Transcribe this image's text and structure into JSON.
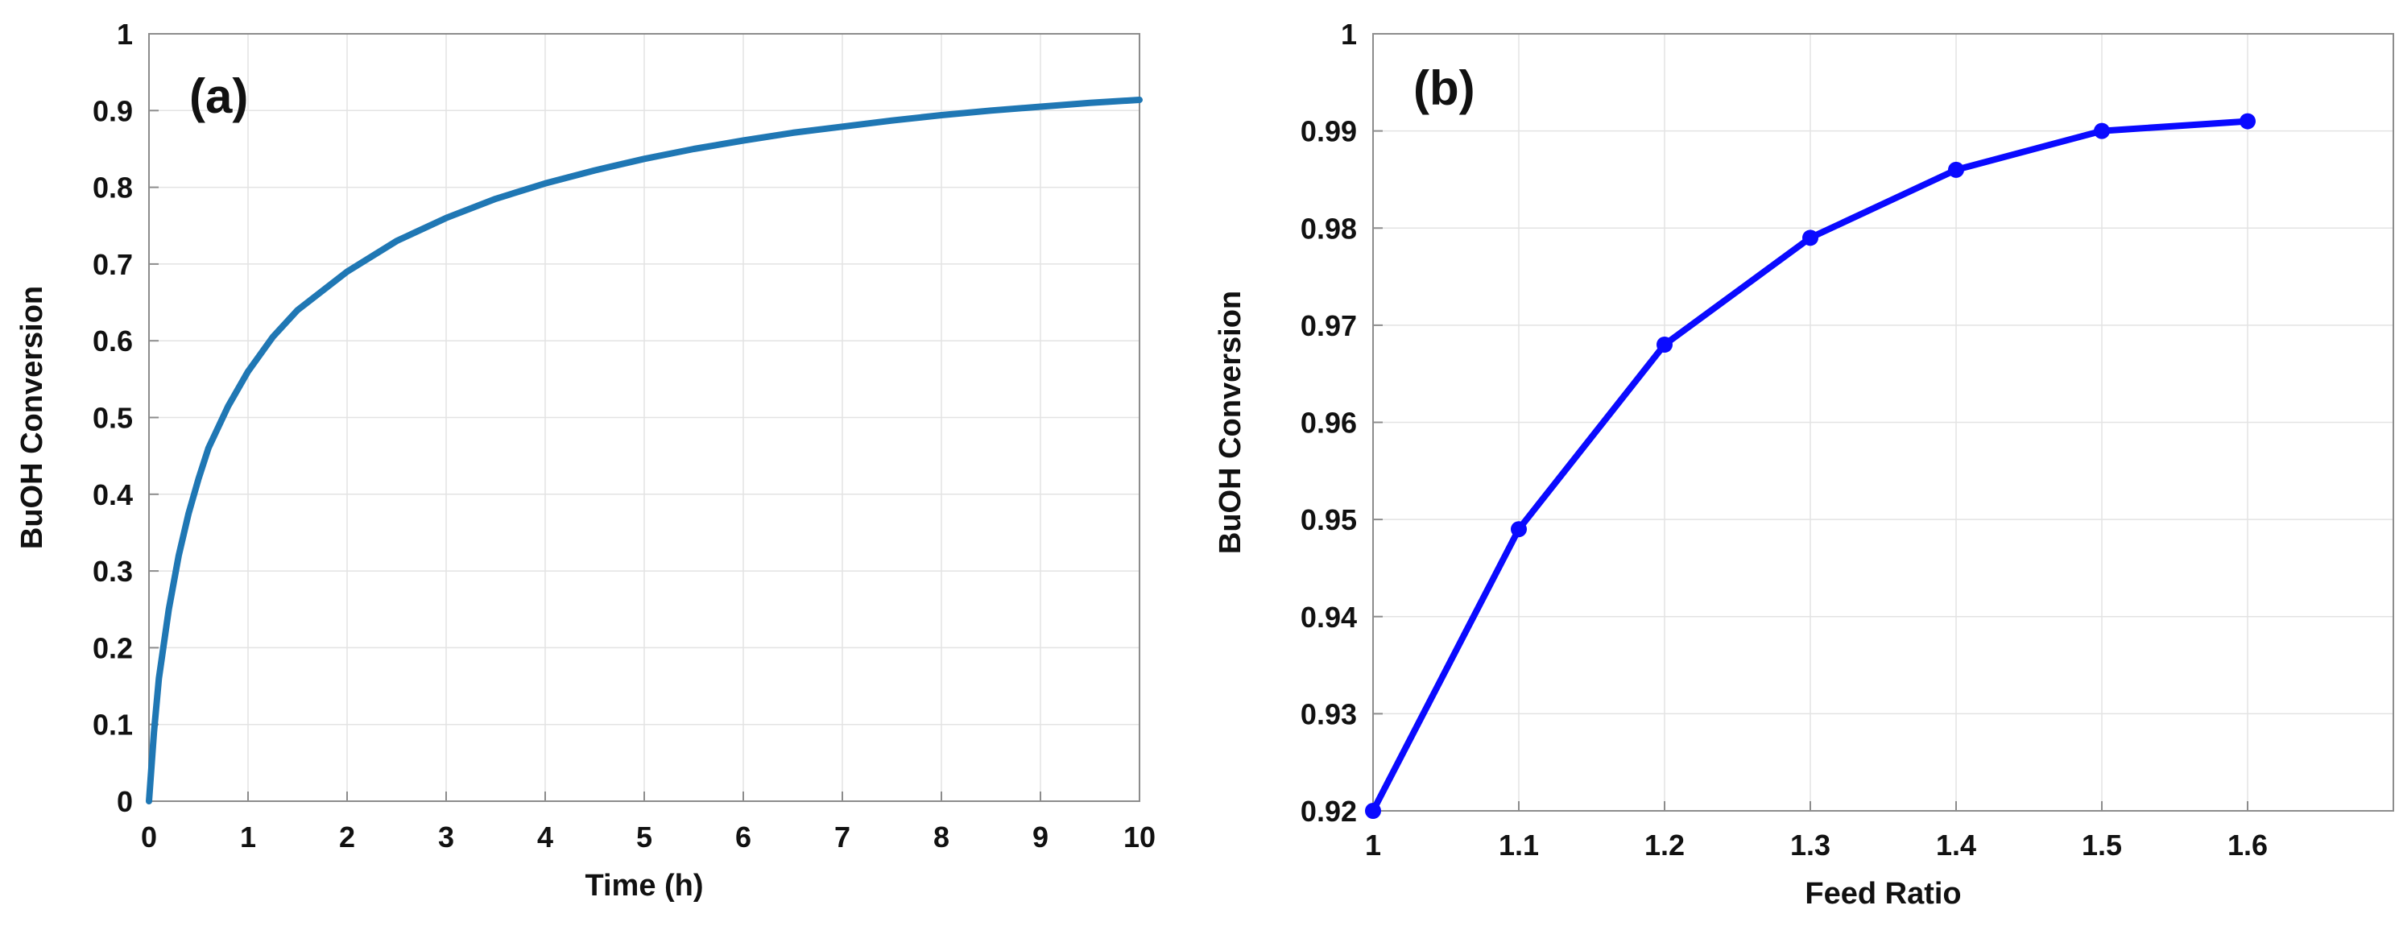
{
  "chart_data": [
    {
      "id": "a",
      "type": "line",
      "panel_label": "(a)",
      "title": "",
      "xlabel": "Time (h)",
      "ylabel": "BuOH Conversion",
      "xlim": [
        0,
        10
      ],
      "ylim": [
        0,
        1
      ],
      "xticks": [
        0,
        1,
        2,
        3,
        4,
        5,
        6,
        7,
        8,
        9,
        10
      ],
      "yticks": [
        0,
        0.1,
        0.2,
        0.3,
        0.4,
        0.5,
        0.6,
        0.7,
        0.8,
        0.9,
        1
      ],
      "xtick_labels": [
        "0",
        "1",
        "2",
        "3",
        "4",
        "5",
        "6",
        "7",
        "8",
        "9",
        "10"
      ],
      "ytick_labels": [
        "0",
        "0.1",
        "0.2",
        "0.3",
        "0.4",
        "0.5",
        "0.6",
        "0.7",
        "0.8",
        "0.9",
        "1"
      ],
      "grid": true,
      "color": "#1f77b4",
      "markers": false,
      "series": [
        {
          "name": "BuOH Conversion",
          "x": [
            0,
            0.05,
            0.1,
            0.2,
            0.3,
            0.4,
            0.5,
            0.6,
            0.8,
            1,
            1.25,
            1.5,
            2,
            2.5,
            3,
            3.5,
            4,
            4.5,
            5,
            5.5,
            6,
            6.5,
            7,
            7.5,
            8,
            8.5,
            9,
            9.5,
            10
          ],
          "values": [
            0,
            0.09,
            0.16,
            0.25,
            0.32,
            0.375,
            0.42,
            0.46,
            0.515,
            0.56,
            0.605,
            0.64,
            0.69,
            0.73,
            0.76,
            0.785,
            0.805,
            0.822,
            0.837,
            0.85,
            0.861,
            0.871,
            0.879,
            0.887,
            0.894,
            0.9,
            0.905,
            0.91,
            0.914
          ]
        }
      ]
    },
    {
      "id": "b",
      "type": "line",
      "panel_label": "(b)",
      "title": "",
      "xlabel": "Feed Ratio",
      "ylabel": "BuOH Conversion",
      "xlim": [
        1,
        1.7
      ],
      "ylim": [
        0.92,
        1
      ],
      "xticks": [
        1,
        1.1,
        1.2,
        1.3,
        1.4,
        1.5,
        1.6
      ],
      "yticks": [
        0.92,
        0.93,
        0.94,
        0.95,
        0.96,
        0.97,
        0.98,
        0.99,
        1
      ],
      "xtick_labels": [
        "1",
        "1.1",
        "1.2",
        "1.3",
        "1.4",
        "1.5",
        "1.6"
      ],
      "ytick_labels": [
        "0.92",
        "0.93",
        "0.94",
        "0.95",
        "0.96",
        "0.97",
        "0.98",
        "0.99",
        "1"
      ],
      "grid": true,
      "color": "#0a0aff",
      "markers": true,
      "series": [
        {
          "name": "BuOH Conversion",
          "x": [
            1,
            1.1,
            1.2,
            1.3,
            1.4,
            1.5,
            1.6
          ],
          "values": [
            0.92,
            0.949,
            0.968,
            0.979,
            0.986,
            0.99,
            0.991
          ]
        }
      ]
    }
  ]
}
